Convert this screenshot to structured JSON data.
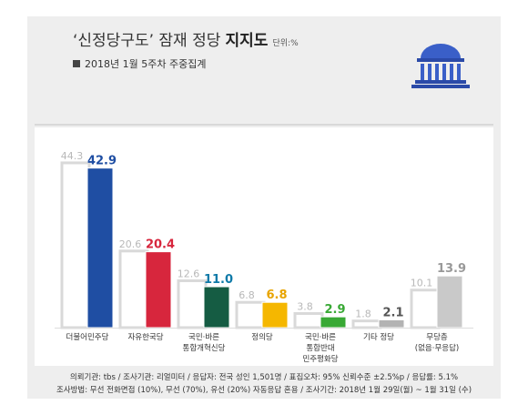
{
  "header": {
    "title_main": "‘신정당구도’ 잠재 정당",
    "title_bold": "지지도",
    "unit": "단위:%",
    "subtitle": "2018년 1월 5주차 주중집계"
  },
  "chart_data": {
    "type": "bar",
    "title": "‘신정당구도’ 잠재 정당 지지도",
    "subtitle": "2018년 1월 5주차 주중집계",
    "unit": "%",
    "categories": [
      [
        "더불어민주당"
      ],
      [
        "자유한국당"
      ],
      [
        "국민·바른",
        "통합개혁신당"
      ],
      [
        "정의당"
      ],
      [
        "국민·바른",
        "통합반대",
        "민주평화당"
      ],
      [
        "기타 정당"
      ],
      [
        "무당층",
        "(없음·무응답)"
      ]
    ],
    "series": [
      {
        "name": "",
        "values": [
          44.3,
          20.6,
          12.6,
          6.8,
          3.8,
          1.8,
          10.1
        ]
      },
      {
        "name": "",
        "values": [
          42.9,
          20.4,
          11.0,
          6.8,
          2.9,
          2.1,
          13.9
        ]
      }
    ],
    "value_labels": {
      "prev": [
        "44.3",
        "20.6",
        "12.6",
        "6.8",
        "3.8",
        "1.8",
        "10.1"
      ],
      "curr": [
        "42.9",
        "20.4",
        "11.0",
        "6.8",
        "2.9",
        "2.1",
        "13.9"
      ]
    },
    "colors": [
      "#1f4ea3",
      "#d7263d",
      "#155c43",
      "#f5b700",
      "#39a935",
      "#b3b3b3",
      "#c9c9c9"
    ],
    "label_colors": [
      "#1f4ea3",
      "#d7263d",
      "#0f7aa8",
      "#e8a400",
      "#39a935",
      "#555555",
      "#999999"
    ],
    "prev_bar_fill": "#ffffff",
    "prev_bar_stroke": "#d9d9d9",
    "ylim": [
      0,
      46
    ]
  },
  "footnote": {
    "line1": "의뢰기관: tbs / 조사기관: 리얼미터 / 응답자: 전국 성인 1,501명 / 표집오차: 95% 신뢰수준 ±2.5%p / 응답률: 5.1%",
    "line2": "조사방법: 무선 전화면접 (10%), 무선 (70%), 유선 (20%) 자동응답 혼용 / 조사기간: 2018년 1월 29일(월) ~ 1월 31일 (수)"
  },
  "logo_icon": "national-assembly-icon"
}
